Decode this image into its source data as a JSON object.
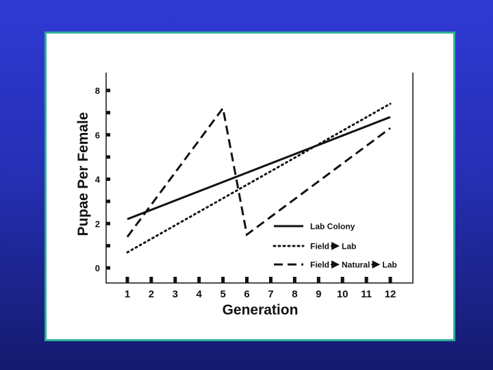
{
  "chart_data": {
    "type": "line",
    "xlabel": "Generation",
    "ylabel": "Pupae Per Female",
    "x": [
      1,
      2,
      3,
      4,
      5,
      6,
      7,
      8,
      9,
      10,
      11,
      12
    ],
    "xlim": [
      1,
      12
    ],
    "ylim": [
      0,
      8
    ],
    "y_ticks": [
      0,
      2,
      4,
      6,
      8
    ],
    "grid": false,
    "legend_position": "bottom-right",
    "series": [
      {
        "name": "Lab Colony",
        "style": "solid",
        "points": [
          [
            1,
            2.2
          ],
          [
            12,
            6.8
          ]
        ]
      },
      {
        "name": "Field→Lab",
        "style": "dotted",
        "points": [
          [
            1,
            0.7
          ],
          [
            12,
            7.4
          ]
        ]
      },
      {
        "name": "Field→Natural→Lab",
        "style": "dashed",
        "points": [
          [
            1,
            1.4
          ],
          [
            5,
            7.2
          ],
          [
            6,
            1.5
          ],
          [
            12,
            6.3
          ]
        ]
      }
    ],
    "legend_labels": [
      [
        "Lab Colony"
      ],
      [
        "Field",
        "Lab"
      ],
      [
        "Field",
        "Natural",
        "Lab"
      ]
    ],
    "colors": {
      "line": "#111111",
      "axes": "#111111",
      "frame_border": "#2fae97"
    }
  }
}
